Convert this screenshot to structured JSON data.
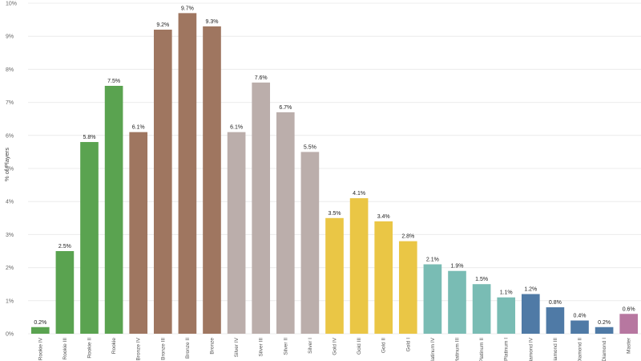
{
  "chart_data": {
    "type": "bar",
    "ylabel": "% of Players",
    "xlabel": "",
    "ylim": [
      0,
      10
    ],
    "yticks": [
      "0%",
      "1%",
      "2%",
      "3%",
      "4%",
      "5%",
      "6%",
      "7%",
      "8%",
      "9%",
      "10%"
    ],
    "grid": true,
    "categories": [
      "Rookie IV",
      "Rookie III",
      "Rookie II",
      "Rookie",
      "Bronze IV",
      "Bronze III",
      "Bronze II",
      "Bronze",
      "Silver IV",
      "Silver III",
      "Silver II",
      "Silver I",
      "Gold IV",
      "Gold III",
      "Gold II",
      "Gold I",
      "Platinum IV",
      "Platinum III",
      "Platinum II",
      "Platinum I",
      "Diamond IV",
      "Diamond III",
      "Diamond II",
      "Diamond I",
      "Master"
    ],
    "values": [
      0.2,
      2.5,
      5.8,
      7.5,
      6.1,
      9.2,
      9.7,
      9.3,
      6.1,
      7.6,
      6.7,
      5.5,
      3.5,
      4.1,
      3.4,
      2.8,
      2.1,
      1.9,
      1.5,
      1.1,
      1.2,
      0.8,
      0.4,
      0.2,
      0.6
    ],
    "data_labels": [
      "0.2%",
      "2.5%",
      "5.8%",
      "7.5%",
      "6.1%",
      "9.2%",
      "9.7%",
      "9.3%",
      "6.1%",
      "7.6%",
      "6.7%",
      "5.5%",
      "3.5%",
      "4.1%",
      "3.4%",
      "2.8%",
      "2.1%",
      "1.9%",
      "1.5%",
      "1.1%",
      "1.2%",
      "0.8%",
      "0.4%",
      "0.2%",
      "0.6%"
    ],
    "colors": [
      "#5aa350",
      "#5aa350",
      "#5aa350",
      "#5aa350",
      "#9f7660",
      "#9f7660",
      "#9f7660",
      "#9f7660",
      "#bbaeab",
      "#bbaeab",
      "#bbaeab",
      "#bbaeab",
      "#eac645",
      "#eac645",
      "#eac645",
      "#eac645",
      "#79bcb4",
      "#79bcb4",
      "#79bcb4",
      "#79bcb4",
      "#4f7aa6",
      "#4f7aa6",
      "#4f7aa6",
      "#4f7aa6",
      "#b777a0"
    ]
  }
}
